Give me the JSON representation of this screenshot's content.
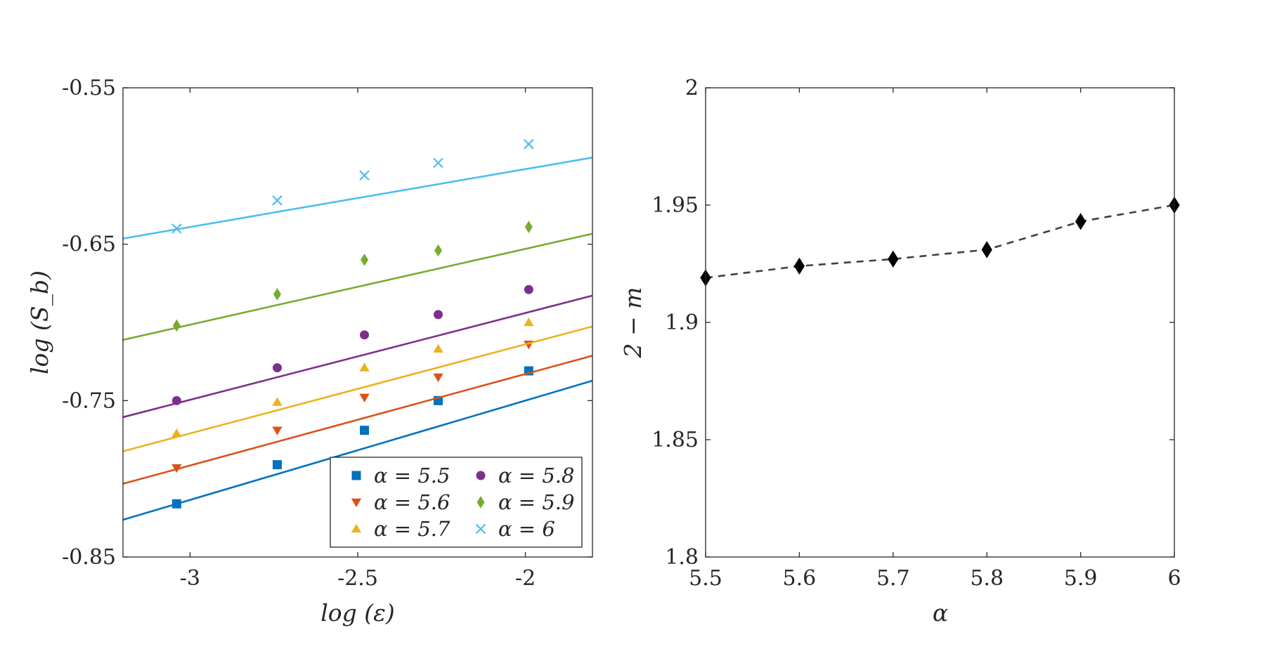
{
  "chart_data": [
    {
      "type": "scatter",
      "title": "",
      "xlabel": "log (ε)",
      "ylabel": "log (S_b)",
      "xlim": [
        -3.2,
        -1.8
      ],
      "ylim": [
        -0.85,
        -0.55
      ],
      "xticks": [
        -3,
        -2.5,
        -2
      ],
      "yticks": [
        -0.85,
        -0.75,
        -0.65,
        -0.55
      ],
      "xtick_labels": [
        "-3",
        "-2.5",
        "-2"
      ],
      "ytick_labels": [
        "-0.85",
        "-0.75",
        "-0.65",
        "-0.55"
      ],
      "x": [
        -3.04,
        -2.74,
        -2.48,
        -2.26,
        -1.99
      ],
      "grid": false,
      "legend_position": "bottom-right",
      "series": [
        {
          "name": "α = 5.5",
          "label": "α = 5.5",
          "marker": "square",
          "color": "#0072BD",
          "values": [
            -0.816,
            -0.791,
            -0.769,
            -0.75,
            -0.731
          ],
          "fit": {
            "intercept": -0.623,
            "slope": 0.0635
          }
        },
        {
          "name": "α = 5.6",
          "label": "α = 5.6",
          "marker": "triangle-down",
          "color": "#D95319",
          "values": [
            -0.793,
            -0.769,
            -0.748,
            -0.735,
            -0.714
          ],
          "fit": {
            "intercept": -0.616,
            "slope": 0.0585
          }
        },
        {
          "name": "α = 5.7",
          "label": "α = 5.7",
          "marker": "triangle-up",
          "color": "#EDB120",
          "values": [
            -0.771,
            -0.751,
            -0.729,
            -0.717,
            -0.7
          ],
          "fit": {
            "intercept": -0.6,
            "slope": 0.057
          }
        },
        {
          "name": "α = 5.8",
          "label": "α = 5.8",
          "marker": "circle",
          "color": "#7E2F8E",
          "values": [
            -0.75,
            -0.729,
            -0.708,
            -0.695,
            -0.679
          ],
          "fit": {
            "intercept": -0.583,
            "slope": 0.0555
          }
        },
        {
          "name": "α = 5.9",
          "label": "α = 5.9",
          "marker": "diamond",
          "color": "#77AC30",
          "values": [
            -0.702,
            -0.682,
            -0.66,
            -0.654,
            -0.639
          ],
          "fit": {
            "intercept": -0.556,
            "slope": 0.0485
          }
        },
        {
          "name": "α = 6",
          "label": "α = 6",
          "marker": "x",
          "color": "#4DBEEE",
          "values": [
            -0.64,
            -0.622,
            -0.606,
            -0.598,
            -0.586
          ],
          "fit": {
            "intercept": -0.528,
            "slope": 0.037
          }
        }
      ]
    },
    {
      "type": "line",
      "title": "",
      "xlabel": "α",
      "ylabel": "2 − m",
      "xlim": [
        5.5,
        6
      ],
      "ylim": [
        1.8,
        2
      ],
      "xticks": [
        5.5,
        5.6,
        5.7,
        5.8,
        5.9,
        6
      ],
      "yticks": [
        1.8,
        1.85,
        1.9,
        1.95,
        2
      ],
      "xtick_labels": [
        "5.5",
        "5.6",
        "5.7",
        "5.8",
        "5.9",
        "6"
      ],
      "ytick_labels": [
        "1.8",
        "1.85",
        "1.9",
        "1.95",
        "2"
      ],
      "grid": false,
      "series": [
        {
          "name": "2 − m",
          "marker": "diamond",
          "line_style": "dashed",
          "color": "#000000",
          "x": [
            5.5,
            5.6,
            5.7,
            5.8,
            5.9,
            6
          ],
          "values": [
            1.919,
            1.924,
            1.927,
            1.931,
            1.943,
            1.95
          ]
        }
      ]
    }
  ]
}
